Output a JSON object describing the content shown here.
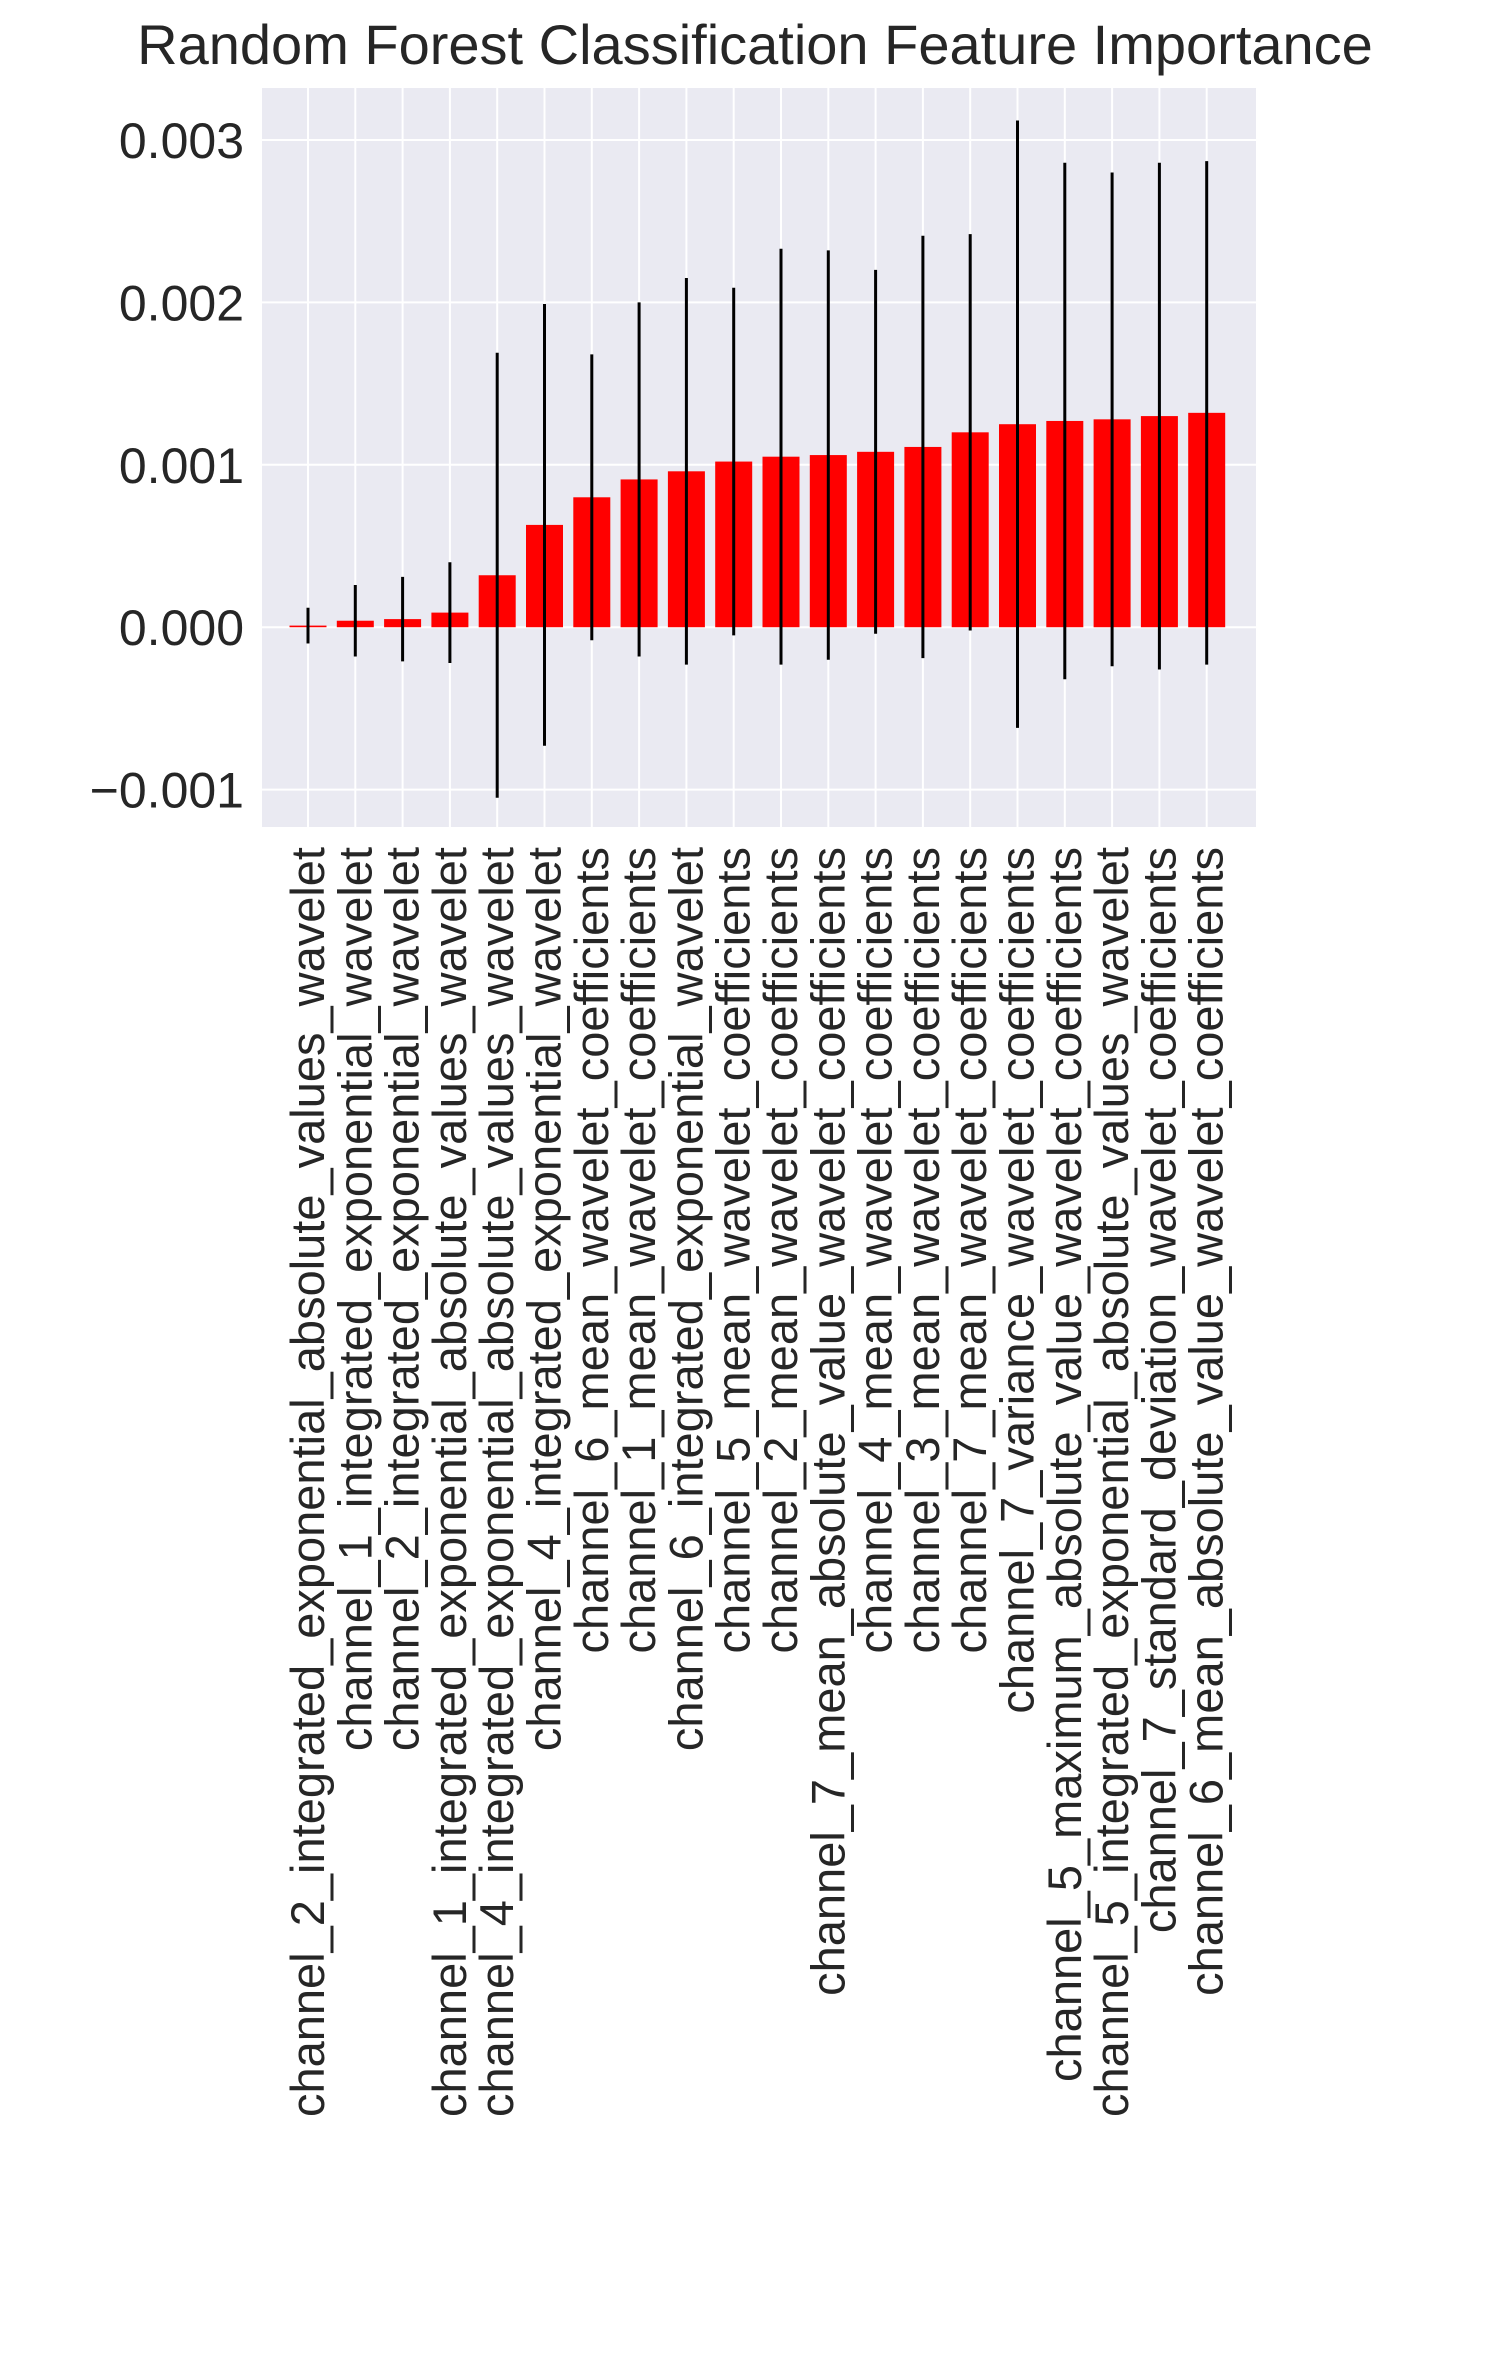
{
  "chart_data": {
    "type": "bar",
    "title": "Random Forest Classification Feature Importance",
    "xlabel": "",
    "ylabel": "",
    "ylim": [
      -0.00123,
      0.00332
    ],
    "yticks": [
      -0.001,
      0.0,
      0.001,
      0.002,
      0.003
    ],
    "ytick_labels": [
      "−0.001",
      "0.000",
      "0.001",
      "0.002",
      "0.003"
    ],
    "grid": true,
    "categories": [
      "channel_2_integrated_exponential_absolute_values_wavelet",
      "channel_1_integrated_exponential_wavelet",
      "channel_2_integrated_exponential_wavelet",
      "channel_1_integrated_exponential_absolute_values_wavelet",
      "channel_4_integrated_exponential_absolute_values_wavelet",
      "channel_4_integrated_exponential_wavelet",
      "channel_6_mean_wavelet_coefficients",
      "channel_1_mean_wavelet_coefficients",
      "channel_6_integrated_exponential_wavelet",
      "channel_5_mean_wavelet_coefficients",
      "channel_2_mean_wavelet_coefficients",
      "channel_7_mean_absolute_value_wavelet_coefficients",
      "channel_4_mean_wavelet_coefficients",
      "channel_3_mean_wavelet_coefficients",
      "channel_7_mean_wavelet_coefficients",
      "channel_7_variance_wavelet_coefficients",
      "channel_5_maximum_absolute_value_wavelet_coefficients",
      "channel_5_integrated_exponential_absolute_values_wavelet",
      "channel_7_standard_deviation_wavelet_coefficients",
      "channel_6_mean_absolute_value_wavelet_coefficients"
    ],
    "values": [
      1e-05,
      4e-05,
      5e-05,
      9e-05,
      0.00032,
      0.00063,
      0.0008,
      0.00091,
      0.00096,
      0.00102,
      0.00105,
      0.00106,
      0.00108,
      0.00111,
      0.0012,
      0.00125,
      0.00127,
      0.00128,
      0.0013,
      0.00132
    ],
    "errors": [
      0.00011,
      0.00022,
      0.00026,
      0.00031,
      0.00137,
      0.00136,
      0.00088,
      0.00109,
      0.00119,
      0.00107,
      0.00128,
      0.00126,
      0.00112,
      0.0013,
      0.00122,
      0.00187,
      0.00159,
      0.00152,
      0.00156,
      0.00155
    ],
    "bar_color": "#ff0000",
    "error_color": "#000000",
    "background_color": "#eaeaf2",
    "grid_color": "#ffffff"
  }
}
